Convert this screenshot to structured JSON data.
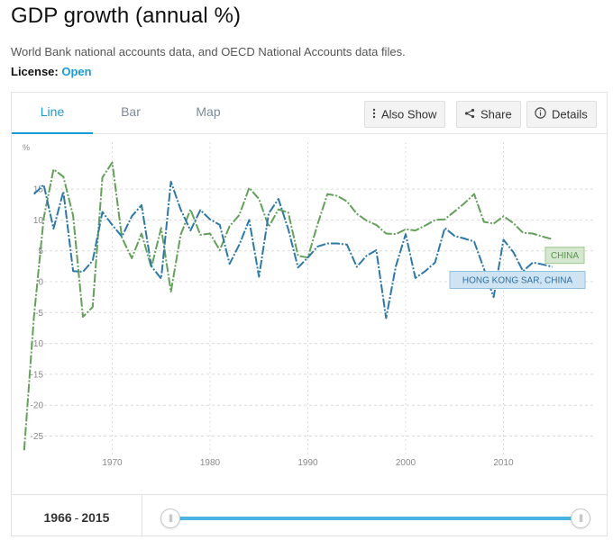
{
  "page": {
    "title": "GDP growth (annual %)",
    "source": "World Bank national accounts data, and OECD National Accounts data files.",
    "license_label": "License:",
    "license_value": "Open"
  },
  "tabs": [
    {
      "label": "Line",
      "active": true
    },
    {
      "label": "Bar",
      "active": false
    },
    {
      "label": "Map",
      "active": false
    }
  ],
  "toolbar": {
    "also_show": "Also Show",
    "share": "Share",
    "details": "Details",
    "also_show_icon": "vertical-ellipsis-icon",
    "share_icon": "share-icon",
    "details_icon": "info-circle-icon"
  },
  "range": {
    "start": "1966",
    "end": "2015",
    "separator": "-",
    "slider_start_fraction": 0.0,
    "slider_end_fraction": 1.0
  },
  "colors": {
    "accent": "#1a9bd7",
    "china": "#63a05a",
    "hong_kong": "#2e78a8",
    "grid": "#dcdcdc",
    "axis_text": "#888888"
  },
  "chart_data": {
    "type": "line",
    "title": "GDP growth (annual %)",
    "ylabel": "%",
    "xlabel": "",
    "xlim": [
      1960,
      2016
    ],
    "ylim": [
      -28,
      20
    ],
    "yticks": [
      15,
      10,
      5,
      0,
      -5,
      -10,
      -15,
      -20,
      -25
    ],
    "xticks": [
      1970,
      1980,
      1990,
      2000,
      2010
    ],
    "grid": true,
    "series": [
      {
        "name": "CHINA",
        "x": [
          1961,
          1962,
          1963,
          1964,
          1965,
          1966,
          1967,
          1968,
          1969,
          1970,
          1971,
          1972,
          1973,
          1974,
          1975,
          1976,
          1977,
          1978,
          1979,
          1980,
          1981,
          1982,
          1983,
          1984,
          1985,
          1986,
          1987,
          1988,
          1989,
          1990,
          1991,
          1992,
          1993,
          1994,
          1995,
          1996,
          1997,
          1998,
          1999,
          2000,
          2001,
          2002,
          2003,
          2004,
          2005,
          2006,
          2007,
          2008,
          2009,
          2010,
          2011,
          2012,
          2013,
          2014,
          2015
        ],
        "values": [
          -27.3,
          -5.6,
          10.3,
          18.2,
          17.0,
          10.7,
          -5.7,
          -4.1,
          16.9,
          19.3,
          7.1,
          3.8,
          7.8,
          2.3,
          8.7,
          -1.6,
          7.6,
          11.7,
          7.6,
          7.8,
          5.1,
          9.0,
          10.8,
          15.2,
          13.4,
          8.9,
          11.7,
          11.2,
          4.2,
          3.9,
          9.3,
          14.2,
          13.9,
          13.0,
          11.0,
          9.9,
          9.2,
          7.8,
          7.7,
          8.5,
          8.3,
          9.1,
          10.0,
          10.1,
          11.4,
          12.7,
          14.2,
          9.7,
          9.4,
          10.6,
          9.5,
          7.9,
          7.8,
          7.3,
          6.9
        ]
      },
      {
        "name": "HONG KONG SAR, CHINA",
        "x": [
          1962,
          1963,
          1964,
          1965,
          1966,
          1967,
          1968,
          1969,
          1970,
          1971,
          1972,
          1973,
          1974,
          1975,
          1976,
          1977,
          1978,
          1979,
          1980,
          1981,
          1982,
          1983,
          1984,
          1985,
          1986,
          1987,
          1988,
          1989,
          1990,
          1991,
          1992,
          1993,
          1994,
          1995,
          1996,
          1997,
          1998,
          1999,
          2000,
          2001,
          2002,
          2003,
          2004,
          2005,
          2006,
          2007,
          2008,
          2009,
          2010,
          2011,
          2012,
          2013,
          2014,
          2015
        ],
        "values": [
          14.2,
          15.7,
          8.6,
          14.6,
          1.7,
          1.6,
          3.4,
          11.3,
          9.2,
          7.3,
          10.6,
          12.4,
          2.5,
          0.5,
          16.2,
          11.7,
          8.3,
          11.6,
          10.1,
          9.2,
          2.9,
          6.0,
          10.0,
          0.8,
          11.1,
          13.4,
          8.5,
          2.3,
          3.9,
          5.7,
          6.2,
          6.2,
          6.0,
          2.4,
          4.2,
          5.1,
          -5.9,
          2.5,
          7.7,
          0.6,
          1.7,
          3.1,
          8.7,
          7.4,
          7.0,
          6.5,
          2.1,
          -2.5,
          6.8,
          4.8,
          1.7,
          3.1,
          2.8,
          2.4
        ]
      }
    ],
    "labels": [
      {
        "text": "CHINA",
        "series": "CHINA"
      },
      {
        "text": "HONG KONG SAR, CHINA",
        "series": "HONG KONG SAR, CHINA"
      }
    ]
  }
}
